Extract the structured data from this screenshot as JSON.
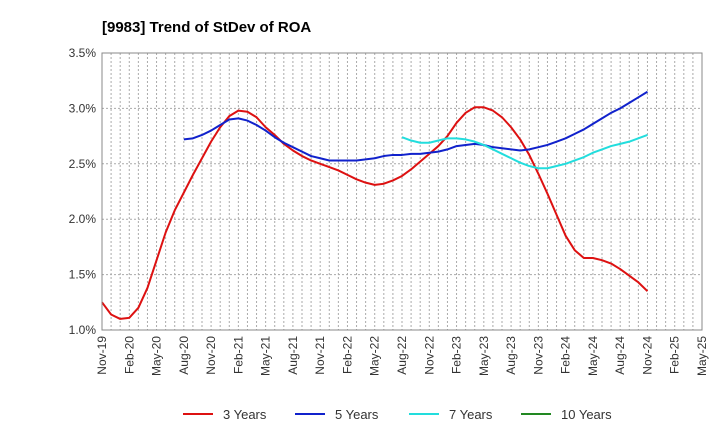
{
  "chart_data": {
    "type": "line",
    "title": "[9983]  Trend of StDev of ROA",
    "xlabel": "",
    "ylabel": "",
    "ylim": [
      1.0,
      3.5
    ],
    "yticks": [
      1.0,
      1.5,
      2.0,
      2.5,
      3.0,
      3.5
    ],
    "ytick_labels": [
      "1.0%",
      "1.5%",
      "2.0%",
      "2.5%",
      "3.0%",
      "3.5%"
    ],
    "x_start": "2019-11",
    "x_months": 66,
    "xtick_labels": [
      "Nov-19",
      "Feb-20",
      "May-20",
      "Aug-20",
      "Nov-20",
      "Feb-21",
      "May-21",
      "Aug-21",
      "Nov-21",
      "Feb-22",
      "May-22",
      "Aug-22",
      "Nov-22",
      "Feb-23",
      "May-23",
      "Aug-23",
      "Nov-23",
      "Feb-24",
      "May-24",
      "Aug-24",
      "Nov-24",
      "Feb-25",
      "May-25"
    ],
    "grid": true,
    "legend_position": "bottom",
    "series": [
      {
        "name": "3 Years",
        "color": "#dd1111",
        "points": [
          [
            "2019-11",
            1.25
          ],
          [
            "2019-12",
            1.14
          ],
          [
            "2020-01",
            1.1
          ],
          [
            "2020-02",
            1.11
          ],
          [
            "2020-03",
            1.2
          ],
          [
            "2020-04",
            1.38
          ],
          [
            "2020-05",
            1.63
          ],
          [
            "2020-06",
            1.88
          ],
          [
            "2020-07",
            2.08
          ],
          [
            "2020-08",
            2.24
          ],
          [
            "2020-09",
            2.4
          ],
          [
            "2020-10",
            2.55
          ],
          [
            "2020-11",
            2.7
          ],
          [
            "2020-12",
            2.83
          ],
          [
            "2021-01",
            2.93
          ],
          [
            "2021-02",
            2.98
          ],
          [
            "2021-03",
            2.97
          ],
          [
            "2021-04",
            2.92
          ],
          [
            "2021-05",
            2.83
          ],
          [
            "2021-06",
            2.76
          ],
          [
            "2021-07",
            2.68
          ],
          [
            "2021-08",
            2.62
          ],
          [
            "2021-09",
            2.57
          ],
          [
            "2021-10",
            2.53
          ],
          [
            "2021-11",
            2.5
          ],
          [
            "2021-12",
            2.47
          ],
          [
            "2022-01",
            2.44
          ],
          [
            "2022-02",
            2.4
          ],
          [
            "2022-03",
            2.36
          ],
          [
            "2022-04",
            2.33
          ],
          [
            "2022-05",
            2.31
          ],
          [
            "2022-06",
            2.32
          ],
          [
            "2022-07",
            2.35
          ],
          [
            "2022-08",
            2.39
          ],
          [
            "2022-09",
            2.45
          ],
          [
            "2022-10",
            2.52
          ],
          [
            "2022-11",
            2.59
          ],
          [
            "2022-12",
            2.66
          ],
          [
            "2023-01",
            2.75
          ],
          [
            "2023-02",
            2.87
          ],
          [
            "2023-03",
            2.96
          ],
          [
            "2023-04",
            3.01
          ],
          [
            "2023-05",
            3.01
          ],
          [
            "2023-06",
            2.98
          ],
          [
            "2023-07",
            2.92
          ],
          [
            "2023-08",
            2.83
          ],
          [
            "2023-09",
            2.72
          ],
          [
            "2023-10",
            2.58
          ],
          [
            "2023-11",
            2.41
          ],
          [
            "2023-12",
            2.23
          ],
          [
            "2024-01",
            2.04
          ],
          [
            "2024-02",
            1.85
          ],
          [
            "2024-03",
            1.72
          ],
          [
            "2024-04",
            1.65
          ],
          [
            "2024-05",
            1.65
          ],
          [
            "2024-06",
            1.63
          ],
          [
            "2024-07",
            1.6
          ],
          [
            "2024-08",
            1.55
          ],
          [
            "2024-09",
            1.49
          ],
          [
            "2024-10",
            1.43
          ],
          [
            "2024-11",
            1.35
          ]
        ]
      },
      {
        "name": "5 Years",
        "color": "#1122cc",
        "points": [
          [
            "2020-08",
            2.72
          ],
          [
            "2020-09",
            2.73
          ],
          [
            "2020-10",
            2.76
          ],
          [
            "2020-11",
            2.8
          ],
          [
            "2020-12",
            2.85
          ],
          [
            "2021-01",
            2.9
          ],
          [
            "2021-02",
            2.91
          ],
          [
            "2021-03",
            2.89
          ],
          [
            "2021-04",
            2.85
          ],
          [
            "2021-05",
            2.8
          ],
          [
            "2021-06",
            2.74
          ],
          [
            "2021-07",
            2.69
          ],
          [
            "2021-08",
            2.65
          ],
          [
            "2021-09",
            2.61
          ],
          [
            "2021-10",
            2.57
          ],
          [
            "2021-11",
            2.55
          ],
          [
            "2021-12",
            2.53
          ],
          [
            "2022-01",
            2.53
          ],
          [
            "2022-02",
            2.53
          ],
          [
            "2022-03",
            2.53
          ],
          [
            "2022-04",
            2.54
          ],
          [
            "2022-05",
            2.55
          ],
          [
            "2022-06",
            2.57
          ],
          [
            "2022-07",
            2.58
          ],
          [
            "2022-08",
            2.58
          ],
          [
            "2022-09",
            2.59
          ],
          [
            "2022-10",
            2.59
          ],
          [
            "2022-11",
            2.6
          ],
          [
            "2022-12",
            2.61
          ],
          [
            "2023-01",
            2.63
          ],
          [
            "2023-02",
            2.66
          ],
          [
            "2023-03",
            2.67
          ],
          [
            "2023-04",
            2.68
          ],
          [
            "2023-05",
            2.67
          ],
          [
            "2023-06",
            2.65
          ],
          [
            "2023-07",
            2.64
          ],
          [
            "2023-08",
            2.63
          ],
          [
            "2023-09",
            2.62
          ],
          [
            "2023-10",
            2.63
          ],
          [
            "2023-11",
            2.65
          ],
          [
            "2023-12",
            2.67
          ],
          [
            "2024-01",
            2.7
          ],
          [
            "2024-02",
            2.73
          ],
          [
            "2024-03",
            2.77
          ],
          [
            "2024-04",
            2.81
          ],
          [
            "2024-05",
            2.86
          ],
          [
            "2024-06",
            2.91
          ],
          [
            "2024-07",
            2.96
          ],
          [
            "2024-08",
            3.0
          ],
          [
            "2024-09",
            3.05
          ],
          [
            "2024-10",
            3.1
          ],
          [
            "2024-11",
            3.15
          ]
        ]
      },
      {
        "name": "7 Years",
        "color": "#22dddd",
        "points": [
          [
            "2022-08",
            2.74
          ],
          [
            "2022-09",
            2.71
          ],
          [
            "2022-10",
            2.69
          ],
          [
            "2022-11",
            2.69
          ],
          [
            "2022-12",
            2.71
          ],
          [
            "2023-01",
            2.73
          ],
          [
            "2023-02",
            2.73
          ],
          [
            "2023-03",
            2.72
          ],
          [
            "2023-04",
            2.7
          ],
          [
            "2023-05",
            2.67
          ],
          [
            "2023-06",
            2.63
          ],
          [
            "2023-07",
            2.59
          ],
          [
            "2023-08",
            2.55
          ],
          [
            "2023-09",
            2.51
          ],
          [
            "2023-10",
            2.48
          ],
          [
            "2023-11",
            2.46
          ],
          [
            "2023-12",
            2.46
          ],
          [
            "2024-01",
            2.48
          ],
          [
            "2024-02",
            2.5
          ],
          [
            "2024-03",
            2.53
          ],
          [
            "2024-04",
            2.56
          ],
          [
            "2024-05",
            2.6
          ],
          [
            "2024-06",
            2.63
          ],
          [
            "2024-07",
            2.66
          ],
          [
            "2024-08",
            2.68
          ],
          [
            "2024-09",
            2.7
          ],
          [
            "2024-10",
            2.73
          ],
          [
            "2024-11",
            2.76
          ]
        ]
      },
      {
        "name": "10 Years",
        "color": "#228822",
        "points": []
      }
    ]
  }
}
